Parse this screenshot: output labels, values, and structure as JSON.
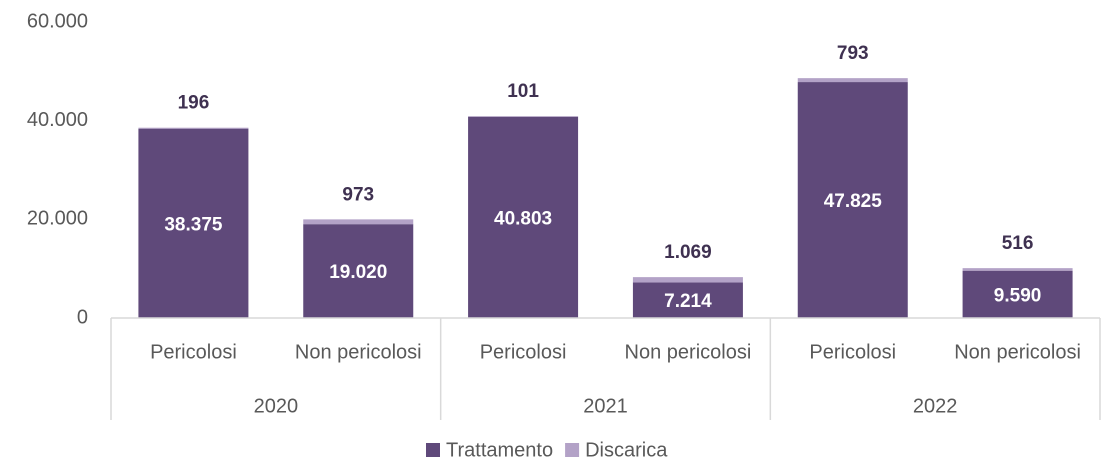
{
  "chart_data": {
    "type": "stacked_bar",
    "categories": [
      "Pericolosi",
      "Non pericolosi",
      "Pericolosi",
      "Non pericolosi",
      "Pericolosi",
      "Non pericolosi"
    ],
    "groups": [
      "2020",
      "2021",
      "2022"
    ],
    "series": [
      {
        "name": "Trattamento",
        "color": "#5f497a",
        "values": [
          38375,
          19020,
          40803,
          7214,
          47825,
          9590
        ],
        "value_labels": [
          "38.375",
          "19.020",
          "40.803",
          "7.214",
          "47.825",
          "9.590"
        ]
      },
      {
        "name": "Discarica",
        "color": "#b3a2c7",
        "values": [
          196,
          973,
          101,
          1069,
          793,
          516
        ],
        "value_labels": [
          "196",
          "973",
          "101",
          "1.069",
          "793",
          "516"
        ]
      }
    ],
    "ylim": [
      0,
      60000
    ],
    "yticks": [
      0,
      {
        "value": 20000,
        "label": "20.000"
      },
      {
        "value": 40000,
        "label": "40.000"
      },
      {
        "value": 60000,
        "label": "60.000"
      }
    ],
    "grid": false,
    "legend": "bottom"
  }
}
